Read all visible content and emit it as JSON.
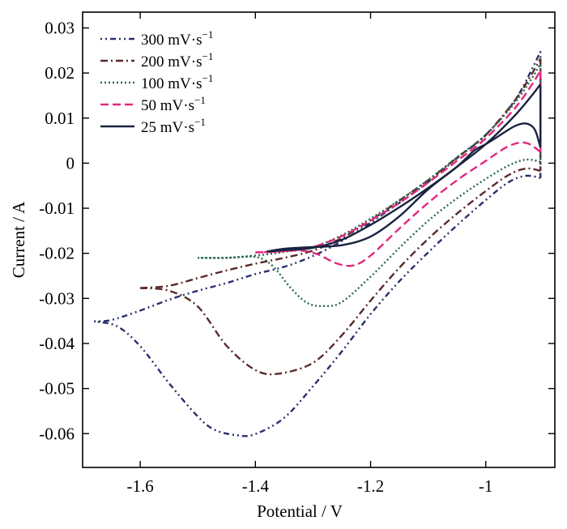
{
  "chart_data": {
    "type": "line",
    "xlabel": "Potential / V",
    "ylabel": "Current / A",
    "xlim": [
      -1.7,
      -0.88
    ],
    "ylim": [
      -0.0675,
      0.0335
    ],
    "x_ticks": [
      -1.6,
      -1.4,
      -1.2,
      -1.0
    ],
    "x_tick_labels": [
      "-1.6",
      "-1.4",
      "-1.2",
      "-1"
    ],
    "y_ticks": [
      0.03,
      0.02,
      0.01,
      0,
      -0.01,
      -0.02,
      -0.03,
      -0.04,
      -0.05,
      -0.06
    ],
    "y_tick_labels": [
      "0.03",
      "0.02",
      "0.01",
      "0",
      "-0.01",
      "-0.02",
      "-0.03",
      "-0.04",
      "-0.05",
      "-0.06"
    ],
    "grid": false,
    "legend_position": "top-left",
    "series": [
      {
        "name": "300 mV·s",
        "superscript": "−1",
        "color": "#2a2f6e",
        "dash": "2,4,2,4,7,4",
        "forward": [
          [
            -1.68,
            -0.0351
          ],
          [
            -1.65,
            -0.0348
          ],
          [
            -1.6,
            -0.0327
          ],
          [
            -1.55,
            -0.0303
          ],
          [
            -1.5,
            -0.0283
          ],
          [
            -1.45,
            -0.0266
          ],
          [
            -1.4,
            -0.0246
          ],
          [
            -1.35,
            -0.023
          ],
          [
            -1.3,
            -0.0206
          ],
          [
            -1.25,
            -0.0173
          ],
          [
            -1.2,
            -0.0132
          ],
          [
            -1.15,
            -0.0088
          ],
          [
            -1.1,
            -0.0042
          ],
          [
            -1.05,
            0.0011
          ],
          [
            -1.0,
            0.0062
          ],
          [
            -0.95,
            0.0138
          ],
          [
            -0.92,
            0.0208
          ],
          [
            -0.905,
            0.0248
          ]
        ],
        "reverse": [
          [
            -0.905,
            -0.0033
          ],
          [
            -0.93,
            -0.0028
          ],
          [
            -0.96,
            -0.0042
          ],
          [
            -1.0,
            -0.0082
          ],
          [
            -1.05,
            -0.0138
          ],
          [
            -1.1,
            -0.0198
          ],
          [
            -1.15,
            -0.0262
          ],
          [
            -1.2,
            -0.0335
          ],
          [
            -1.25,
            -0.0418
          ],
          [
            -1.3,
            -0.0495
          ],
          [
            -1.35,
            -0.0565
          ],
          [
            -1.4,
            -0.0601
          ],
          [
            -1.43,
            -0.0604
          ],
          [
            -1.47,
            -0.0592
          ],
          [
            -1.5,
            -0.0562
          ],
          [
            -1.55,
            -0.0488
          ],
          [
            -1.6,
            -0.0406
          ],
          [
            -1.64,
            -0.0362
          ],
          [
            -1.68,
            -0.0351
          ]
        ]
      },
      {
        "name": "200 mV·s",
        "superscript": "−1",
        "color": "#5a2a2a",
        "dash": "9,4,2,4",
        "forward": [
          [
            -1.6,
            -0.0277
          ],
          [
            -1.55,
            -0.0272
          ],
          [
            -1.5,
            -0.0255
          ],
          [
            -1.45,
            -0.0238
          ],
          [
            -1.4,
            -0.0223
          ],
          [
            -1.35,
            -0.021
          ],
          [
            -1.3,
            -0.0194
          ],
          [
            -1.25,
            -0.0166
          ],
          [
            -1.2,
            -0.0127
          ],
          [
            -1.15,
            -0.0083
          ],
          [
            -1.1,
            -0.0038
          ],
          [
            -1.05,
            0.0012
          ],
          [
            -1.0,
            0.0063
          ],
          [
            -0.95,
            0.0138
          ],
          [
            -0.92,
            0.0198
          ],
          [
            -0.905,
            0.0232
          ]
        ],
        "reverse": [
          [
            -0.905,
            -0.0017
          ],
          [
            -0.93,
            -0.0012
          ],
          [
            -0.96,
            -0.0026
          ],
          [
            -1.0,
            -0.0062
          ],
          [
            -1.05,
            -0.0112
          ],
          [
            -1.1,
            -0.0168
          ],
          [
            -1.15,
            -0.0232
          ],
          [
            -1.2,
            -0.0305
          ],
          [
            -1.25,
            -0.0382
          ],
          [
            -1.3,
            -0.0443
          ],
          [
            -1.36,
            -0.0467
          ],
          [
            -1.4,
            -0.0459
          ],
          [
            -1.45,
            -0.0405
          ],
          [
            -1.5,
            -0.0318
          ],
          [
            -1.55,
            -0.0283
          ],
          [
            -1.6,
            -0.0277
          ]
        ]
      },
      {
        "name": "100 mV·s",
        "superscript": "−1",
        "color": "#2c6b4c",
        "dash": "2,3",
        "forward": [
          [
            -1.5,
            -0.021
          ],
          [
            -1.45,
            -0.021
          ],
          [
            -1.4,
            -0.0205
          ],
          [
            -1.35,
            -0.0197
          ],
          [
            -1.3,
            -0.0186
          ],
          [
            -1.25,
            -0.016
          ],
          [
            -1.2,
            -0.0123
          ],
          [
            -1.15,
            -0.0082
          ],
          [
            -1.1,
            -0.0037
          ],
          [
            -1.05,
            0.0013
          ],
          [
            -1.0,
            0.0063
          ],
          [
            -0.95,
            0.0133
          ],
          [
            -0.92,
            0.0188
          ],
          [
            -0.905,
            0.022
          ]
        ],
        "reverse": [
          [
            -0.905,
            0.0003
          ],
          [
            -0.93,
            0.0008
          ],
          [
            -0.96,
            -0.0005
          ],
          [
            -1.0,
            -0.0035
          ],
          [
            -1.05,
            -0.0078
          ],
          [
            -1.1,
            -0.0128
          ],
          [
            -1.15,
            -0.0188
          ],
          [
            -1.2,
            -0.0252
          ],
          [
            -1.25,
            -0.0308
          ],
          [
            -1.28,
            -0.0317
          ],
          [
            -1.31,
            -0.031
          ],
          [
            -1.34,
            -0.0275
          ],
          [
            -1.37,
            -0.0228
          ],
          [
            -1.4,
            -0.0208
          ],
          [
            -1.45,
            -0.021
          ],
          [
            -1.5,
            -0.021
          ]
        ]
      },
      {
        "name": "50 mV·s",
        "superscript": "−1",
        "color": "#e3287c",
        "dash": "10,5",
        "forward": [
          [
            -1.4,
            -0.0198
          ],
          [
            -1.35,
            -0.0195
          ],
          [
            -1.3,
            -0.0186
          ],
          [
            -1.25,
            -0.0162
          ],
          [
            -1.2,
            -0.0127
          ],
          [
            -1.15,
            -0.0088
          ],
          [
            -1.1,
            -0.0043
          ],
          [
            -1.05,
            0.0005
          ],
          [
            -1.0,
            0.0055
          ],
          [
            -0.95,
            0.0121
          ],
          [
            -0.92,
            0.0174
          ],
          [
            -0.905,
            0.0205
          ]
        ],
        "reverse": [
          [
            -0.905,
            0.0025
          ],
          [
            -0.93,
            0.0045
          ],
          [
            -0.96,
            0.0038
          ],
          [
            -1.0,
            0.0005
          ],
          [
            -1.05,
            -0.0038
          ],
          [
            -1.1,
            -0.0088
          ],
          [
            -1.15,
            -0.0145
          ],
          [
            -1.2,
            -0.0205
          ],
          [
            -1.23,
            -0.0227
          ],
          [
            -1.26,
            -0.0222
          ],
          [
            -1.29,
            -0.0203
          ],
          [
            -1.32,
            -0.0194
          ],
          [
            -1.36,
            -0.0196
          ],
          [
            -1.4,
            -0.0198
          ]
        ]
      },
      {
        "name": "25 mV·s",
        "superscript": "−1",
        "color": "#1a2240",
        "dash": "",
        "forward": [
          [
            -1.38,
            -0.0196
          ],
          [
            -1.35,
            -0.0193
          ],
          [
            -1.3,
            -0.0188
          ],
          [
            -1.25,
            -0.017
          ],
          [
            -1.2,
            -0.0137
          ],
          [
            -1.15,
            -0.0098
          ],
          [
            -1.1,
            -0.0055
          ],
          [
            -1.05,
            -0.0008
          ],
          [
            -1.0,
            0.0042
          ],
          [
            -0.95,
            0.0105
          ],
          [
            -0.92,
            0.015
          ],
          [
            -0.905,
            0.0175
          ]
        ],
        "reverse": [
          [
            -0.905,
            0.0035
          ],
          [
            -0.915,
            0.0075
          ],
          [
            -0.93,
            0.0088
          ],
          [
            -0.95,
            0.0082
          ],
          [
            -0.98,
            0.0058
          ],
          [
            -1.0,
            0.0042
          ],
          [
            -1.02,
            0.0028
          ],
          [
            -1.05,
            -0.0008
          ],
          [
            -1.1,
            -0.0058
          ],
          [
            -1.15,
            -0.0118
          ],
          [
            -1.2,
            -0.0163
          ],
          [
            -1.25,
            -0.0182
          ],
          [
            -1.3,
            -0.0186
          ],
          [
            -1.35,
            -0.019
          ],
          [
            -1.38,
            -0.0196
          ]
        ]
      }
    ]
  }
}
